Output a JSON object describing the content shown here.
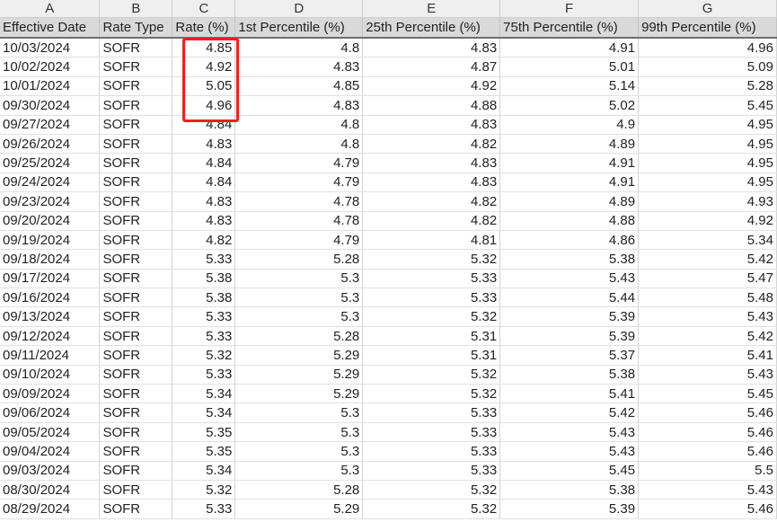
{
  "column_letters": [
    "A",
    "B",
    "C",
    "D",
    "E",
    "F",
    "G"
  ],
  "headers": [
    "Effective Date",
    "Rate Type",
    "Rate (%)",
    "1st Percentile (%)",
    "25th Percentile (%)",
    "75th Percentile (%)",
    "99th Percentile (%)"
  ],
  "rows": [
    [
      "10/03/2024",
      "SOFR",
      "4.85",
      "4.8",
      "4.83",
      "4.91",
      "4.96"
    ],
    [
      "10/02/2024",
      "SOFR",
      "4.92",
      "4.83",
      "4.87",
      "5.01",
      "5.09"
    ],
    [
      "10/01/2024",
      "SOFR",
      "5.05",
      "4.85",
      "4.92",
      "5.14",
      "5.28"
    ],
    [
      "09/30/2024",
      "SOFR",
      "4.96",
      "4.83",
      "4.88",
      "5.02",
      "5.45"
    ],
    [
      "09/27/2024",
      "SOFR",
      "4.84",
      "4.8",
      "4.83",
      "4.9",
      "4.95"
    ],
    [
      "09/26/2024",
      "SOFR",
      "4.83",
      "4.8",
      "4.82",
      "4.89",
      "4.95"
    ],
    [
      "09/25/2024",
      "SOFR",
      "4.84",
      "4.79",
      "4.83",
      "4.91",
      "4.95"
    ],
    [
      "09/24/2024",
      "SOFR",
      "4.84",
      "4.79",
      "4.83",
      "4.91",
      "4.95"
    ],
    [
      "09/23/2024",
      "SOFR",
      "4.83",
      "4.78",
      "4.82",
      "4.89",
      "4.93"
    ],
    [
      "09/20/2024",
      "SOFR",
      "4.83",
      "4.78",
      "4.82",
      "4.88",
      "4.92"
    ],
    [
      "09/19/2024",
      "SOFR",
      "4.82",
      "4.79",
      "4.81",
      "4.86",
      "5.34"
    ],
    [
      "09/18/2024",
      "SOFR",
      "5.33",
      "5.28",
      "5.32",
      "5.38",
      "5.42"
    ],
    [
      "09/17/2024",
      "SOFR",
      "5.38",
      "5.3",
      "5.33",
      "5.43",
      "5.47"
    ],
    [
      "09/16/2024",
      "SOFR",
      "5.38",
      "5.3",
      "5.33",
      "5.44",
      "5.48"
    ],
    [
      "09/13/2024",
      "SOFR",
      "5.33",
      "5.3",
      "5.32",
      "5.39",
      "5.43"
    ],
    [
      "09/12/2024",
      "SOFR",
      "5.33",
      "5.28",
      "5.31",
      "5.39",
      "5.42"
    ],
    [
      "09/11/2024",
      "SOFR",
      "5.32",
      "5.29",
      "5.31",
      "5.37",
      "5.41"
    ],
    [
      "09/10/2024",
      "SOFR",
      "5.33",
      "5.29",
      "5.32",
      "5.38",
      "5.43"
    ],
    [
      "09/09/2024",
      "SOFR",
      "5.34",
      "5.29",
      "5.32",
      "5.41",
      "5.45"
    ],
    [
      "09/06/2024",
      "SOFR",
      "5.34",
      "5.3",
      "5.33",
      "5.42",
      "5.46"
    ],
    [
      "09/05/2024",
      "SOFR",
      "5.35",
      "5.3",
      "5.33",
      "5.43",
      "5.46"
    ],
    [
      "09/04/2024",
      "SOFR",
      "5.35",
      "5.3",
      "5.33",
      "5.43",
      "5.46"
    ],
    [
      "09/03/2024",
      "SOFR",
      "5.34",
      "5.3",
      "5.33",
      "5.45",
      "5.5"
    ],
    [
      "08/30/2024",
      "SOFR",
      "5.32",
      "5.28",
      "5.32",
      "5.38",
      "5.43"
    ],
    [
      "08/29/2024",
      "SOFR",
      "5.33",
      "5.29",
      "5.32",
      "5.39",
      "5.46"
    ]
  ],
  "highlight": {
    "color": "#f0201e",
    "column": "C",
    "rows": [
      "10/03/2024",
      "10/02/2024",
      "10/01/2024",
      "09/30/2024"
    ]
  }
}
